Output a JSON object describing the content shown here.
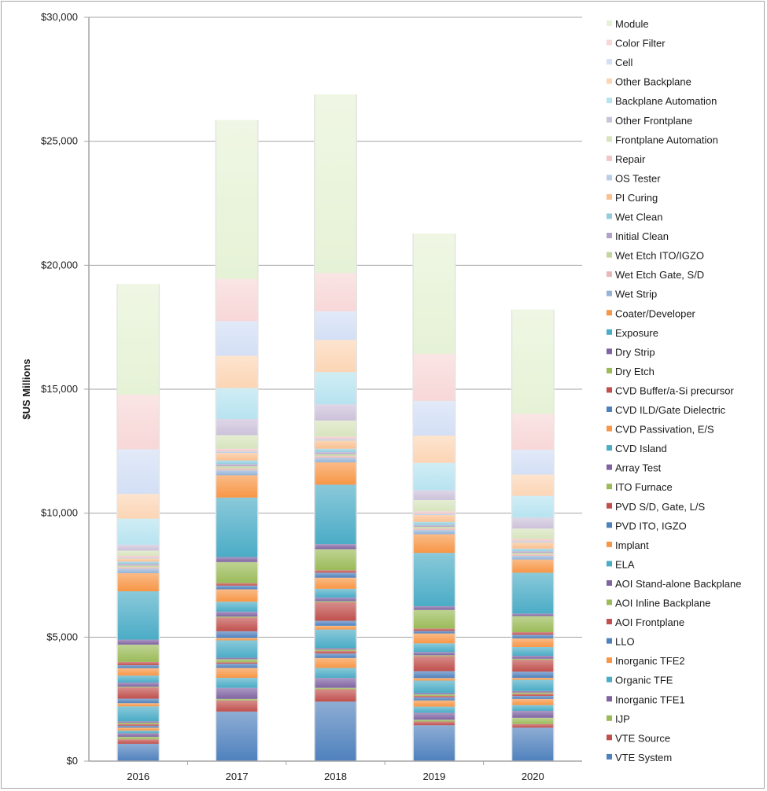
{
  "chart_data": {
    "type": "bar",
    "stacked": true,
    "title": "",
    "xlabel": "",
    "ylabel": "$US Millions",
    "ylim": [
      0,
      30000
    ],
    "yticks": [
      0,
      5000,
      10000,
      15000,
      20000,
      25000,
      30000
    ],
    "ytick_labels": [
      "$0",
      "$5,000",
      "$10,000",
      "$15,000",
      "$20,000",
      "$25,000",
      "$30,000"
    ],
    "grid": "horizontal",
    "legend_position": "right",
    "categories": [
      "2016",
      "2017",
      "2018",
      "2019",
      "2020"
    ],
    "series": [
      {
        "name": "VTE System",
        "color": "#4f81bd",
        "values": [
          700,
          2000,
          2400,
          1450,
          1350
        ]
      },
      {
        "name": "VTE Source",
        "color": "#c0504d",
        "values": [
          180,
          450,
          500,
          150,
          150
        ]
      },
      {
        "name": "IJP",
        "color": "#9bbb59",
        "values": [
          100,
          60,
          60,
          70,
          250
        ]
      },
      {
        "name": "Inorganic TFE1",
        "color": "#8064a2",
        "values": [
          150,
          450,
          400,
          280,
          280
        ]
      },
      {
        "name": "Organic TFE",
        "color": "#4bacc6",
        "values": [
          100,
          400,
          400,
          250,
          230
        ]
      },
      {
        "name": "Inorganic TFE2",
        "color": "#f79646",
        "values": [
          120,
          400,
          400,
          250,
          250
        ]
      },
      {
        "name": "LLO",
        "color": "#4f81bd",
        "values": [
          80,
          170,
          180,
          120,
          120
        ]
      },
      {
        "name": "AOI Frontplane",
        "color": "#c0504d",
        "values": [
          60,
          60,
          100,
          60,
          80
        ]
      },
      {
        "name": "AOI Inline Backplane",
        "color": "#9bbb59",
        "values": [
          60,
          120,
          60,
          60,
          60
        ]
      },
      {
        "name": "AOI Stand-alone Backplane",
        "color": "#8064a2",
        "values": [
          60,
          60,
          60,
          60,
          60
        ]
      },
      {
        "name": "ELA",
        "color": "#4bacc6",
        "values": [
          600,
          700,
          750,
          500,
          450
        ]
      },
      {
        "name": "Implant",
        "color": "#f79646",
        "values": [
          130,
          100,
          150,
          100,
          80
        ]
      },
      {
        "name": "PVD ITO, IGZO",
        "color": "#4f81bd",
        "values": [
          180,
          270,
          200,
          280,
          250
        ]
      },
      {
        "name": "PVD S/D, Gate, L/S",
        "color": "#c0504d",
        "values": [
          450,
          550,
          750,
          600,
          480
        ]
      },
      {
        "name": "ITO Furnace",
        "color": "#9bbb59",
        "values": [
          30,
          40,
          40,
          40,
          40
        ]
      },
      {
        "name": "Array Test",
        "color": "#8064a2",
        "values": [
          170,
          200,
          150,
          130,
          120
        ]
      },
      {
        "name": "CVD Island",
        "color": "#4bacc6",
        "values": [
          280,
          400,
          350,
          350,
          350
        ]
      },
      {
        "name": "CVD Passivation, E/S",
        "color": "#f79646",
        "values": [
          300,
          500,
          450,
          400,
          350
        ]
      },
      {
        "name": "CVD ILD/Gate Dielectric",
        "color": "#4f81bd",
        "values": [
          120,
          150,
          200,
          100,
          150
        ]
      },
      {
        "name": "CVD Buffer/a-Si precursor",
        "color": "#c0504d",
        "values": [
          130,
          100,
          100,
          100,
          100
        ]
      },
      {
        "name": "Dry Etch",
        "color": "#9bbb59",
        "values": [
          700,
          850,
          850,
          750,
          650
        ]
      },
      {
        "name": "Dry Strip",
        "color": "#8064a2",
        "values": [
          200,
          200,
          200,
          150,
          100
        ]
      },
      {
        "name": "Exposure",
        "color": "#4bacc6",
        "values": [
          1950,
          2400,
          2400,
          2150,
          1650
        ]
      },
      {
        "name": "Coater/Developer",
        "color": "#f79646",
        "values": [
          730,
          900,
          900,
          750,
          530
        ]
      },
      {
        "name": "Wet Strip",
        "color": "#95b3d7",
        "values": [
          180,
          200,
          180,
          170,
          150
        ]
      },
      {
        "name": "Wet Etch Gate, S/D",
        "color": "#e6b9b8",
        "values": [
          70,
          80,
          80,
          70,
          60
        ]
      },
      {
        "name": "Wet Etch ITO/IGZO",
        "color": "#c3d69b",
        "values": [
          60,
          80,
          70,
          60,
          60
        ]
      },
      {
        "name": "Initial Clean",
        "color": "#b3a2c7",
        "values": [
          70,
          90,
          80,
          70,
          60
        ]
      },
      {
        "name": "Wet Clean",
        "color": "#93cddd",
        "values": [
          90,
          150,
          140,
          130,
          110
        ]
      },
      {
        "name": "PI Curing",
        "color": "#fac090",
        "values": [
          120,
          300,
          330,
          280,
          250
        ]
      },
      {
        "name": "OS Tester",
        "color": "#b9cde5",
        "values": [
          40,
          60,
          60,
          50,
          50
        ]
      },
      {
        "name": "Repair",
        "color": "#f2c6c6",
        "values": [
          80,
          110,
          100,
          100,
          90
        ]
      },
      {
        "name": "Frontplane Automation",
        "color": "#d7e4bd",
        "values": [
          200,
          550,
          650,
          450,
          420
        ]
      },
      {
        "name": "Other Frontplane",
        "color": "#ccc1da",
        "values": [
          240,
          650,
          650,
          400,
          440
        ]
      },
      {
        "name": "Backplane Automation",
        "color": "#b7e3f0",
        "values": [
          1050,
          1250,
          1300,
          1100,
          880
        ]
      },
      {
        "name": "Other Backplane",
        "color": "#fcd5b5",
        "values": [
          1000,
          1300,
          1300,
          1100,
          860
        ]
      },
      {
        "name": "Cell",
        "color": "#d3dff5",
        "values": [
          1800,
          1400,
          1150,
          1400,
          1000
        ]
      },
      {
        "name": "Color Filter",
        "color": "#f8d7d7",
        "values": [
          2200,
          1700,
          1550,
          1900,
          1450
        ]
      },
      {
        "name": "Module",
        "color": "#e6f2d6",
        "values": [
          4460,
          6400,
          7200,
          4850,
          4200
        ]
      }
    ]
  }
}
